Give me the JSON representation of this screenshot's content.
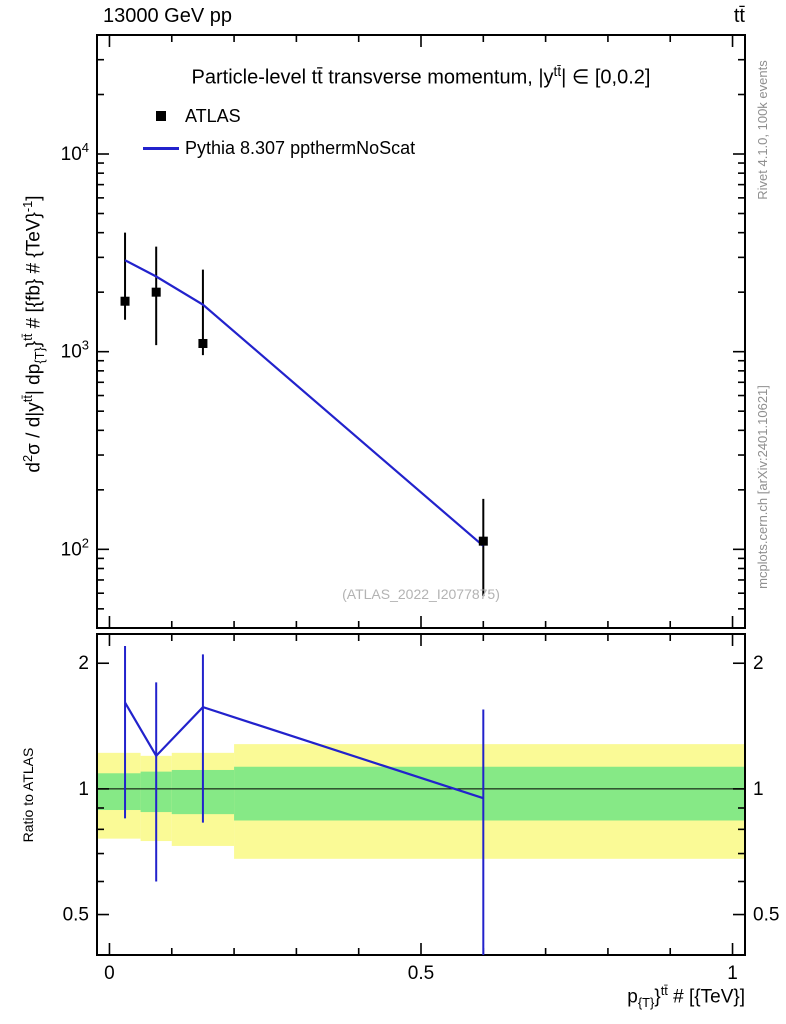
{
  "header": {
    "left": "13000 GeV pp",
    "right": "tt̄"
  },
  "title": {
    "pre": "Particle-level ",
    "ttbar": "tt̄",
    "mid": " transverse momentum, |y",
    "sup": "tt̄",
    "post": "| ∈ [0,0.2]"
  },
  "legend": [
    {
      "label": "ATLAS",
      "marker": "square",
      "color": "#000000"
    },
    {
      "label": "Pythia 8.307 ppthermNoScat",
      "marker": "line",
      "color": "#2222cc"
    }
  ],
  "watermark": "(ATLAS_2022_I2077875)",
  "side_notes": {
    "top_right": "Rivet 4.1.0,  100k events",
    "bottom_right": "mcplots.cern.ch [arXiv:2401.10621]"
  },
  "ratio_ylabel": "Ratio to ATLAS",
  "ylabel": {
    "d": "d",
    "d_exp": "2",
    "s1": "σ / d|y",
    "sup1": "tt̄",
    "s2": "| dp",
    "sub1": "{T}",
    "s3": "}",
    "sup2": "tt̄",
    "s4": " # [{fb} # {TeV}",
    "sup3": "-1",
    "s5": "]"
  },
  "xlabel": {
    "p": "p",
    "sub": "{T}",
    "brace": "}",
    "sup": "tt̄",
    "rest": " # [{TeV}]"
  },
  "chart_data": {
    "type": "line",
    "title_text": "Particle-level tt̄ transverse momentum, |y^{tt̄}| ∈ [0,0.2]",
    "xlabel_text": "p_{T}^{tt̄} [TeV]",
    "ylabel_text": "d^2σ / d|y^{tt̄}| dp_{T}^{tt̄} [fb/TeV]",
    "legend_position": "top-left",
    "grid": false,
    "top_panel": {
      "yscale": "log",
      "ylim": [
        40,
        40000
      ],
      "xlim": [
        -0.02,
        1.02
      ],
      "yticks": [
        100,
        1000,
        10000
      ],
      "ytick_labels": [
        [
          "10",
          "2"
        ],
        [
          "10",
          "3"
        ],
        [
          "10",
          "4"
        ]
      ],
      "xticks": [
        0,
        0.5,
        1
      ],
      "xtick_labels": [
        "0",
        "0.5",
        "1"
      ],
      "xminor_step": 0.1,
      "series": [
        {
          "name": "ATLAS",
          "type": "scatter",
          "color": "#000000",
          "x": [
            0.025,
            0.075,
            0.15,
            0.6
          ],
          "y": [
            1800,
            2000,
            1100,
            110
          ],
          "y_err_lo": [
            1450,
            1080,
            960,
            58
          ],
          "y_err_hi": [
            4000,
            3400,
            2600,
            180
          ]
        },
        {
          "name": "Pythia 8.307 ppthermNoScat",
          "type": "line",
          "color": "#2222cc",
          "x": [
            0.025,
            0.075,
            0.15,
            0.6
          ],
          "y": [
            2900,
            2400,
            1730,
            104
          ]
        }
      ]
    },
    "ratio_panel": {
      "yscale": "log",
      "ylim": [
        0.4,
        2.35
      ],
      "yticks": [
        0.5,
        1,
        2
      ],
      "ytick_labels": [
        "0.5",
        "1",
        "2"
      ],
      "reference_line": 1,
      "bands": {
        "bin_edges": [
          0,
          0.05,
          0.1,
          0.2,
          1.0
        ],
        "yellow": {
          "color": "#fafa96",
          "lo": [
            0.76,
            0.75,
            0.73,
            0.68
          ],
          "hi": [
            1.22,
            1.2,
            1.22,
            1.28
          ]
        },
        "green": {
          "color": "#86e986",
          "lo": [
            0.89,
            0.88,
            0.87,
            0.84
          ],
          "hi": [
            1.09,
            1.1,
            1.11,
            1.13
          ]
        }
      },
      "ratio": {
        "color": "#2222cc",
        "x": [
          0.025,
          0.075,
          0.15,
          0.6
        ],
        "y": [
          1.61,
          1.2,
          1.57,
          0.95
        ],
        "err_lo": [
          0.85,
          0.6,
          0.83,
          0.33
        ],
        "err_hi": [
          2.2,
          1.8,
          2.1,
          1.55
        ]
      }
    }
  }
}
